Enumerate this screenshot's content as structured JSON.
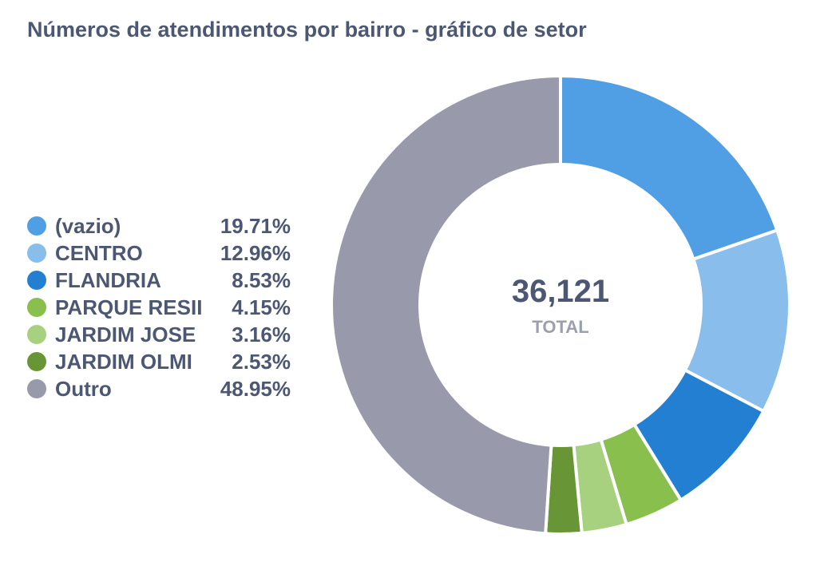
{
  "title": "Números de atendimentos por bairro - gráfico de setor",
  "chart_data": {
    "type": "pie",
    "variant": "donut",
    "center_value": "36,121",
    "center_label": "TOTAL",
    "legend_position": "left",
    "slices": [
      {
        "label": "(vazio)",
        "value": 19.71,
        "display": "19.71%",
        "color": "#509ee3"
      },
      {
        "label": "CENTRO",
        "value": 12.96,
        "display": "12.96%",
        "color": "#88bdec"
      },
      {
        "label": "FLANDRIA",
        "value": 8.53,
        "display": "8.53%",
        "color": "#227fd2"
      },
      {
        "label": "PARQUE RESII",
        "value": 4.15,
        "display": "4.15%",
        "color": "#88bf4d"
      },
      {
        "label": "JARDIM JOSE",
        "value": 3.16,
        "display": "3.16%",
        "color": "#a8d17f"
      },
      {
        "label": "JARDIM OLMI",
        "value": 2.53,
        "display": "2.53%",
        "color": "#689636"
      },
      {
        "label": "Outro",
        "value": 48.95,
        "display": "48.95%",
        "color": "#989aab"
      }
    ]
  }
}
